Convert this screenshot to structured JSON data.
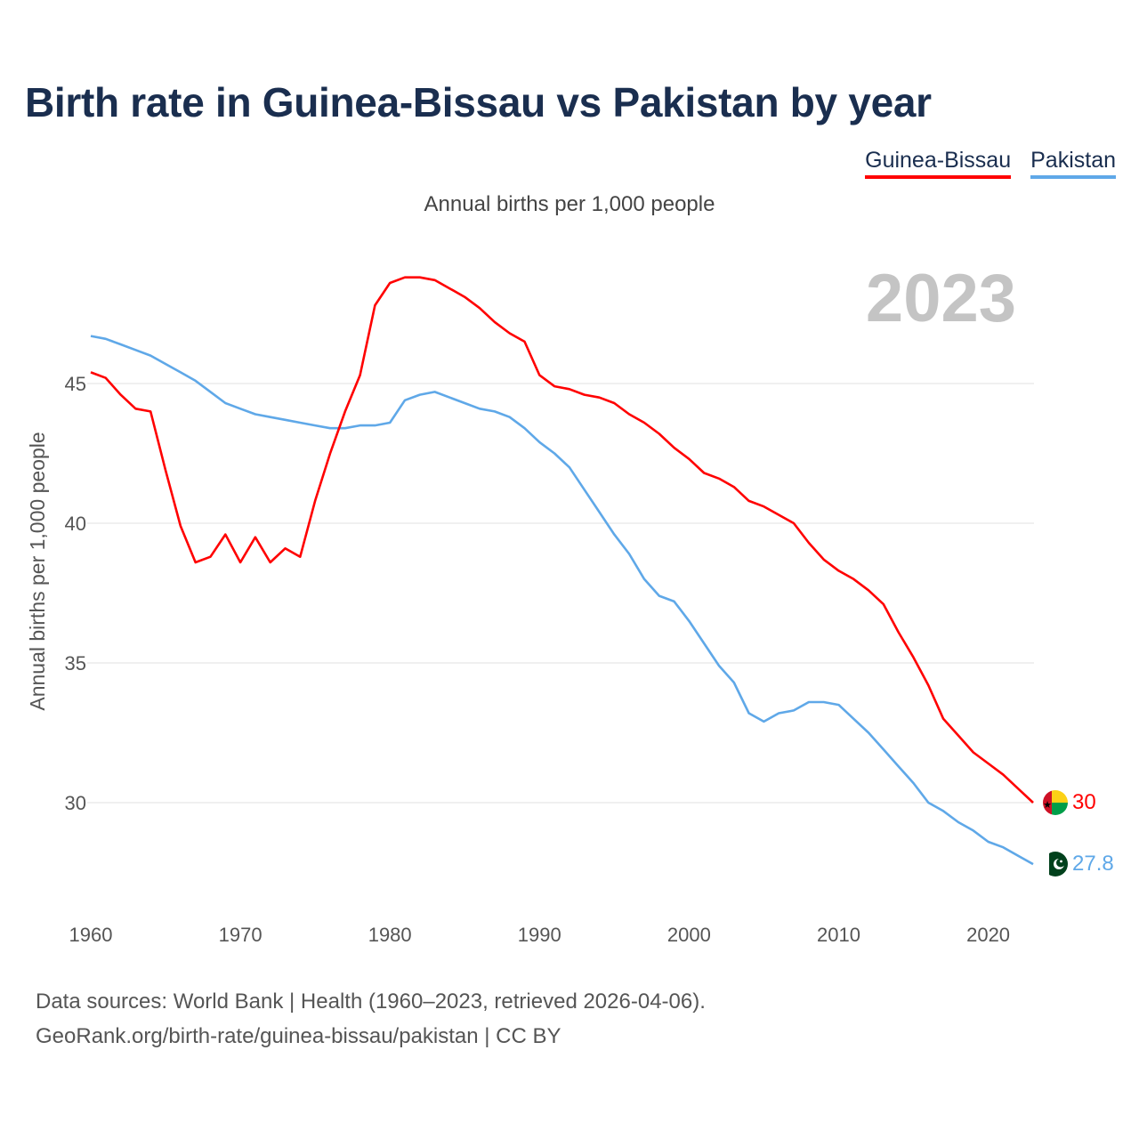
{
  "title": "Birth rate in Guinea-Bissau vs Pakistan by year",
  "subtitle": "Annual births per 1,000 people",
  "current_year": "2023",
  "footer": {
    "line1": "Data sources: World Bank | Health (1960–2023, retrieved 2026-04-06).",
    "line2": "GeoRank.org/birth-rate/guinea-bissau/pakistan | CC BY"
  },
  "colors": {
    "guinea_bissau": "#ff0000",
    "pakistan": "#5fa8e8",
    "title": "#1a2e4f",
    "grid": "#e6e6e6"
  },
  "chart_data": {
    "type": "line",
    "title": "Birth rate in Guinea-Bissau vs Pakistan by year",
    "ylabel": "Annual births per 1,000 people",
    "xlabel": "",
    "xlim": [
      1960,
      2023
    ],
    "ylim": [
      26.5,
      50
    ],
    "x_ticks": [
      1960,
      1970,
      1980,
      1990,
      2000,
      2010,
      2020
    ],
    "y_ticks": [
      30,
      35,
      40,
      45
    ],
    "grid": true,
    "legend": "top-right",
    "x": [
      1960,
      1961,
      1962,
      1963,
      1964,
      1965,
      1966,
      1967,
      1968,
      1969,
      1970,
      1971,
      1972,
      1973,
      1974,
      1975,
      1976,
      1977,
      1978,
      1979,
      1980,
      1981,
      1982,
      1983,
      1984,
      1985,
      1986,
      1987,
      1988,
      1989,
      1990,
      1991,
      1992,
      1993,
      1994,
      1995,
      1996,
      1997,
      1998,
      1999,
      2000,
      2001,
      2002,
      2003,
      2004,
      2005,
      2006,
      2007,
      2008,
      2009,
      2010,
      2011,
      2012,
      2013,
      2014,
      2015,
      2016,
      2017,
      2018,
      2019,
      2020,
      2021,
      2022,
      2023
    ],
    "series": [
      {
        "name": "Guinea-Bissau",
        "end_label": "30",
        "values": [
          45.4,
          45.2,
          44.6,
          44.1,
          44.0,
          41.9,
          39.9,
          38.6,
          38.8,
          39.6,
          38.6,
          39.5,
          38.6,
          39.1,
          38.8,
          40.8,
          42.5,
          44.0,
          45.3,
          47.8,
          48.6,
          48.8,
          48.8,
          48.7,
          48.4,
          48.1,
          47.7,
          47.2,
          46.8,
          46.5,
          45.3,
          44.9,
          44.8,
          44.6,
          44.5,
          44.3,
          43.9,
          43.6,
          43.2,
          42.7,
          42.3,
          41.8,
          41.6,
          41.3,
          40.8,
          40.6,
          40.3,
          40.0,
          39.3,
          38.7,
          38.3,
          38.0,
          37.6,
          37.1,
          36.1,
          35.2,
          34.2,
          33.0,
          32.4,
          31.8,
          31.4,
          31.0,
          30.5,
          30.0
        ]
      },
      {
        "name": "Pakistan",
        "end_label": "27.8",
        "values": [
          46.7,
          46.6,
          46.4,
          46.2,
          46.0,
          45.7,
          45.4,
          45.1,
          44.7,
          44.3,
          44.1,
          43.9,
          43.8,
          43.7,
          43.6,
          43.5,
          43.4,
          43.4,
          43.5,
          43.5,
          43.6,
          44.4,
          44.6,
          44.7,
          44.5,
          44.3,
          44.1,
          44.0,
          43.8,
          43.4,
          42.9,
          42.5,
          42.0,
          41.2,
          40.4,
          39.6,
          38.9,
          38.0,
          37.4,
          37.2,
          36.5,
          35.7,
          34.9,
          34.3,
          33.2,
          32.9,
          33.2,
          33.3,
          33.6,
          33.6,
          33.5,
          33.0,
          32.5,
          31.9,
          31.3,
          30.7,
          30.0,
          29.7,
          29.3,
          29.0,
          28.6,
          28.4,
          28.1,
          27.8
        ]
      }
    ]
  }
}
